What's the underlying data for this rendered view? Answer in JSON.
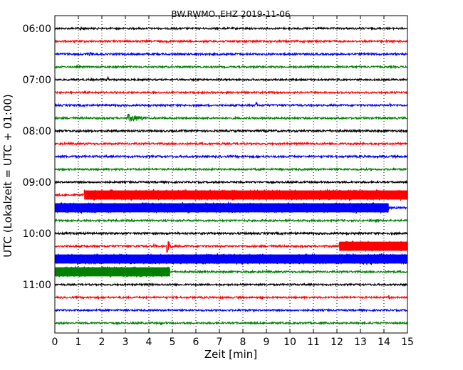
{
  "chart_data": {
    "type": "line",
    "title": "BW.RWMO..EHZ 2019-11-06",
    "xlabel": "Zeit  [min]",
    "ylabel": "UTC (Lokalzeit = UTC + 01:00)",
    "xlim": [
      0,
      15
    ],
    "x_ticks": [
      0,
      1,
      2,
      3,
      4,
      5,
      6,
      7,
      8,
      9,
      10,
      11,
      12,
      13,
      14,
      15
    ],
    "x_tick_labels": [
      "0",
      "1",
      "2",
      "3",
      "4",
      "5",
      "6",
      "7",
      "8",
      "9",
      "10",
      "11",
      "12",
      "13",
      "14",
      "15"
    ],
    "grid": "vertical dotted at each minute",
    "y_tick_labels": [
      "06:00",
      "07:00",
      "08:00",
      "09:00",
      "10:00",
      "11:00"
    ],
    "trace_interval_minutes": 15,
    "colors": {
      "black": "#000000",
      "red": "#ff0000",
      "blue": "#0000ff",
      "green": "#008000"
    },
    "traces": [
      {
        "start_utc": "06:00",
        "color": "black",
        "baseline_amp": 1.2,
        "events": [
          {
            "start": 1.05,
            "end": 1.6,
            "amp": 3
          }
        ]
      },
      {
        "start_utc": "06:15",
        "color": "red",
        "baseline_amp": 1.3,
        "events": []
      },
      {
        "start_utc": "06:30",
        "color": "blue",
        "baseline_amp": 1.3,
        "events": [
          {
            "start": 1.4,
            "end": 1.9,
            "amp": 3
          }
        ]
      },
      {
        "start_utc": "06:45",
        "color": "green",
        "baseline_amp": 1.2,
        "events": []
      },
      {
        "start_utc": "07:00",
        "color": "black",
        "baseline_amp": 1.2,
        "events": [
          {
            "start": 2.25,
            "end": 2.35,
            "amp": 7
          }
        ]
      },
      {
        "start_utc": "07:15",
        "color": "red",
        "baseline_amp": 1.2,
        "events": []
      },
      {
        "start_utc": "07:30",
        "color": "blue",
        "baseline_amp": 1.3,
        "events": [
          {
            "start": 8.55,
            "end": 8.65,
            "amp": 6
          },
          {
            "start": 14.25,
            "end": 14.35,
            "amp": 4
          }
        ]
      },
      {
        "start_utc": "07:45",
        "color": "green",
        "baseline_amp": 1.3,
        "events": [
          {
            "start": 3.1,
            "end": 4.0,
            "amp": 6
          }
        ]
      },
      {
        "start_utc": "08:00",
        "color": "black",
        "baseline_amp": 1.4,
        "events": []
      },
      {
        "start_utc": "08:15",
        "color": "red",
        "baseline_amp": 1.3,
        "events": [
          {
            "start": 14.4,
            "end": 14.5,
            "amp": 3
          }
        ]
      },
      {
        "start_utc": "08:30",
        "color": "blue",
        "baseline_amp": 1.4,
        "events": []
      },
      {
        "start_utc": "08:45",
        "color": "green",
        "baseline_amp": 1.3,
        "events": []
      },
      {
        "start_utc": "09:00",
        "color": "black",
        "baseline_amp": 1.2,
        "events": []
      },
      {
        "start_utc": "09:15",
        "color": "red",
        "baseline_amp": 1.3,
        "events": [
          {
            "start": 1.25,
            "end": 15.0,
            "amp": 7.5
          }
        ]
      },
      {
        "start_utc": "09:30",
        "color": "blue",
        "baseline_amp": 1.3,
        "events": [
          {
            "start": 0.0,
            "end": 14.2,
            "amp": 7.5
          }
        ]
      },
      {
        "start_utc": "09:45",
        "color": "green",
        "baseline_amp": 1.3,
        "events": []
      },
      {
        "start_utc": "10:00",
        "color": "black",
        "baseline_amp": 1.4,
        "events": []
      },
      {
        "start_utc": "10:15",
        "color": "red",
        "baseline_amp": 1.3,
        "events": [
          {
            "start": 4.75,
            "end": 5.0,
            "amp": 10
          },
          {
            "start": 4.2,
            "end": 4.4,
            "amp": 3
          },
          {
            "start": 12.1,
            "end": 15.0,
            "amp": 7.5
          }
        ]
      },
      {
        "start_utc": "10:30",
        "color": "blue",
        "baseline_amp": 1.4,
        "events": [
          {
            "start": 0.0,
            "end": 15.0,
            "amp": 7.5
          }
        ]
      },
      {
        "start_utc": "10:45",
        "color": "green",
        "baseline_amp": 1.3,
        "events": [
          {
            "start": 0.0,
            "end": 4.9,
            "amp": 7.5
          }
        ]
      },
      {
        "start_utc": "11:00",
        "color": "black",
        "baseline_amp": 1.2,
        "events": []
      },
      {
        "start_utc": "11:15",
        "color": "red",
        "baseline_amp": 1.2,
        "events": [
          {
            "start": 8.8,
            "end": 8.9,
            "amp": 3
          },
          {
            "start": 14.2,
            "end": 14.3,
            "amp": 4
          }
        ]
      },
      {
        "start_utc": "11:30",
        "color": "blue",
        "baseline_amp": 1.2,
        "events": [
          {
            "start": 1.4,
            "end": 1.5,
            "amp": 3
          }
        ]
      },
      {
        "start_utc": "11:45",
        "color": "green",
        "baseline_amp": 1.2,
        "events": [
          {
            "start": 4.5,
            "end": 4.6,
            "amp": 3
          }
        ]
      }
    ]
  }
}
